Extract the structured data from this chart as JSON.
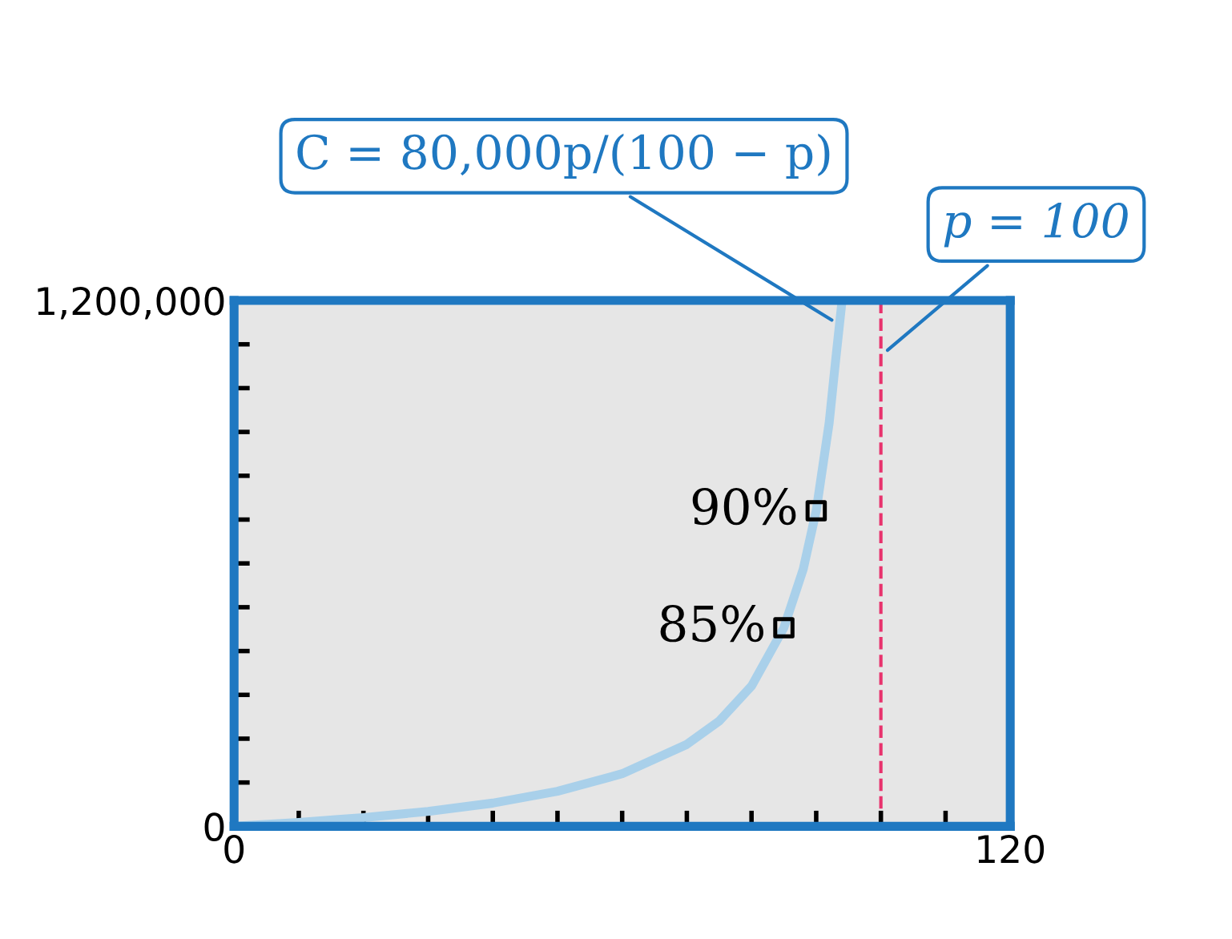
{
  "chart_data": {
    "type": "line",
    "series": [
      {
        "type": "line",
        "color": "#a9d0ea",
        "x": [
          0,
          10,
          20,
          30,
          40,
          50,
          60,
          70,
          75,
          80,
          85,
          88,
          90,
          92,
          93,
          94
        ],
        "values": [
          0,
          9000,
          20000,
          34000,
          53000,
          80000,
          120000,
          187000,
          240000,
          320000,
          453000,
          587000,
          720000,
          920000,
          1063000,
          1200000
        ]
      },
      {
        "type": "scatter",
        "color": "#000000",
        "marker": "square",
        "x": [
          85,
          90
        ],
        "values": [
          453000,
          720000
        ]
      }
    ],
    "xlim": [
      0,
      120
    ],
    "ylim": [
      0,
      1200000
    ],
    "xticks": [
      0,
      {
        "value": 10,
        "label": null
      },
      {
        "value": 20,
        "label": null
      },
      {
        "value": 30,
        "label": null
      },
      {
        "value": 40,
        "label": null
      },
      {
        "value": 50,
        "label": null
      },
      {
        "value": 60,
        "label": null
      },
      {
        "value": 70,
        "label": null
      },
      {
        "value": 80,
        "label": null
      },
      {
        "value": 90,
        "label": null
      },
      {
        "value": 100,
        "label": null
      },
      {
        "value": 110,
        "label": null
      },
      120
    ],
    "yticks": [
      0,
      {
        "value": 100000,
        "label": null
      },
      {
        "value": 200000,
        "label": null
      },
      {
        "value": 300000,
        "label": null
      },
      {
        "value": 400000,
        "label": null
      },
      {
        "value": 500000,
        "label": null
      },
      {
        "value": 600000,
        "label": null
      },
      {
        "value": 700000,
        "label": null
      },
      {
        "value": 800000,
        "label": null
      },
      {
        "value": 900000,
        "label": null
      },
      {
        "value": 1000000,
        "label": null
      },
      {
        "value": 1100000,
        "label": null
      },
      {
        "value": 1200000,
        "label": "1,200,000"
      }
    ],
    "ref_lines": [
      {
        "axis": "x",
        "value": 100,
        "label": "p = 100",
        "color": "#e8336d",
        "line_style": "dashed"
      }
    ],
    "annotations": [
      {
        "text": "C = 80,000p/(100 − p)",
        "x": 93,
        "y": 1150000
      },
      {
        "text": "90%",
        "x": 90,
        "y": 720000
      },
      {
        "text": "85%",
        "x": 85,
        "y": 453000
      }
    ]
  }
}
